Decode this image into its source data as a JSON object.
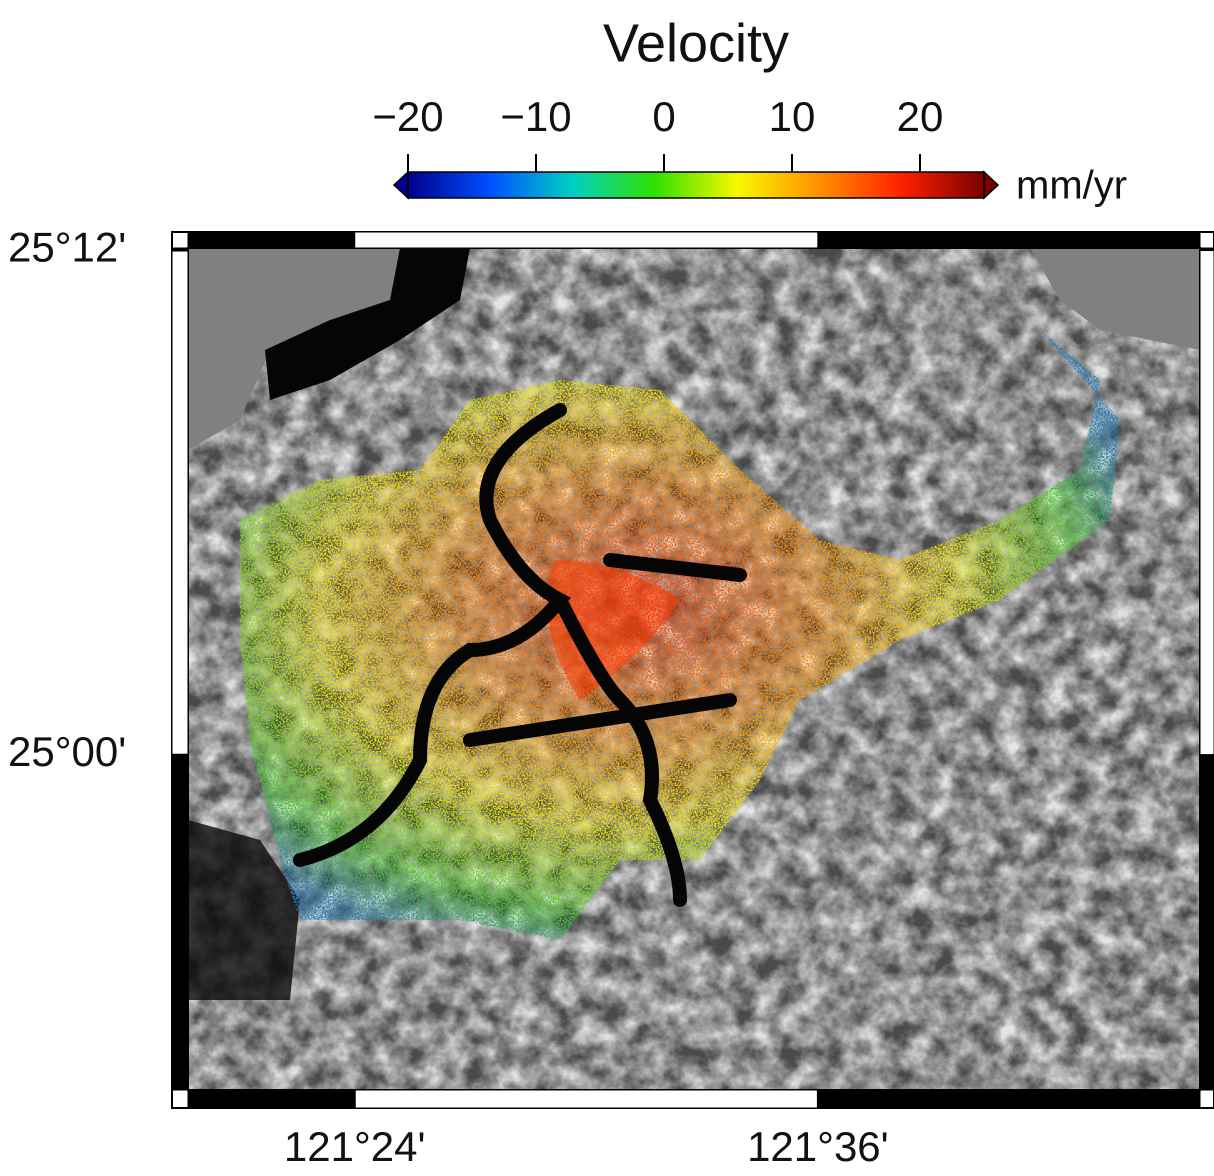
{
  "colorbar": {
    "title": "Velocity",
    "unit": "mm/yr",
    "lim": [
      -20,
      25
    ],
    "ticks": [
      {
        "value": -20,
        "label": "−20"
      },
      {
        "value": -10,
        "label": "−10"
      },
      0,
      10,
      20
    ],
    "colormap": [
      "#00008c",
      "#0050ff",
      "#00d0c0",
      "#30e000",
      "#f8f800",
      "#ff9000",
      "#ff2000",
      "#7a0000"
    ]
  },
  "map": {
    "xlim": [
      121.328,
      121.765
    ],
    "ylim": [
      24.867,
      25.201
    ],
    "xticks": [
      {
        "value": 121.4,
        "label": "121°24'"
      },
      {
        "value": 121.6,
        "label": "121°36'"
      }
    ],
    "yticks": [
      {
        "value": 25.2,
        "label": "25°12'"
      },
      {
        "value": 25.0,
        "label": "25°00'"
      }
    ]
  }
}
